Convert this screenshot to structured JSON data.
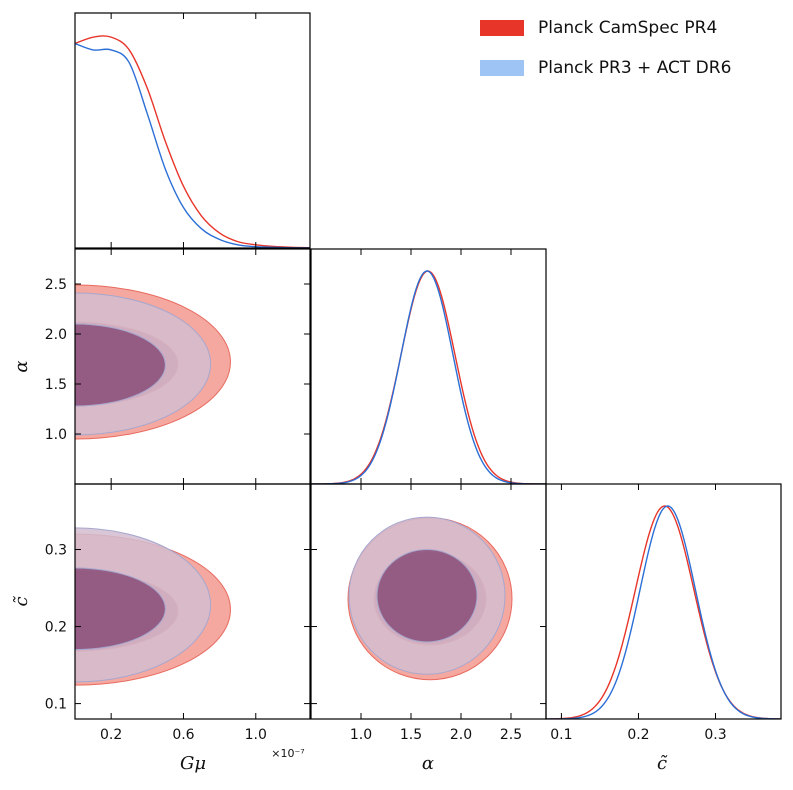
{
  "chart_data": {
    "type": "triangle",
    "parameters": [
      {
        "symbol": "Gμ",
        "range": [
          0.0,
          1.3
        ],
        "ticks": [
          0.2,
          0.6,
          1.0
        ],
        "tick_labels": [
          "0.2",
          "0.6",
          "1.0"
        ],
        "scale_label": "×10⁻⁷"
      },
      {
        "symbol": "α",
        "range": [
          0.5,
          2.85
        ],
        "ticks": [
          1.0,
          1.5,
          2.0,
          2.5
        ],
        "tick_labels": [
          "1.0",
          "1.5",
          "2.0",
          "2.5"
        ]
      },
      {
        "symbol": "c̃",
        "range": [
          0.08,
          0.385
        ],
        "ticks": [
          0.1,
          0.2,
          0.3
        ],
        "tick_labels": [
          "0.1",
          "0.2",
          "0.3"
        ]
      }
    ],
    "series": [
      {
        "name": "Planck CamSpec PR4",
        "line_color": "#e8352a",
        "fill_outer": "#f4a89f",
        "fill_inner": "#c0505e",
        "marginals": [
          {
            "x": [
              0.0,
              0.1,
              0.2,
              0.3,
              0.4,
              0.5,
              0.6,
              0.7,
              0.8,
              0.9,
              1.0,
              1.1,
              1.2,
              1.3
            ],
            "y": [
              0.96,
              0.99,
              0.99,
              0.93,
              0.75,
              0.5,
              0.29,
              0.15,
              0.07,
              0.03,
              0.015,
              0.007,
              0.003,
              0.001
            ]
          },
          {
            "mean": 1.67,
            "sigma": 0.27
          },
          {
            "mean": 0.234,
            "sigma": 0.038
          }
        ],
        "contours": [
          {
            "x_param": 0,
            "y_param": 1,
            "outer": {
              "cx": 0.0,
              "cy": 1.72,
              "rx": 0.86,
              "ry": 0.77
            },
            "inner": {
              "cx": 0.0,
              "cy": 1.7,
              "rx": 0.57,
              "ry": 0.42
            }
          },
          {
            "x_param": 0,
            "y_param": 2,
            "outer": {
              "cx": 0.0,
              "cy": 0.222,
              "rx": 0.86,
              "ry": 0.098
            },
            "inner": {
              "cx": 0.0,
              "cy": 0.22,
              "rx": 0.57,
              "ry": 0.052
            }
          },
          {
            "x_param": 1,
            "y_param": 2,
            "outer": {
              "cx": 1.69,
              "cy": 0.236,
              "rx": 0.82,
              "ry": 0.105
            },
            "inner": {
              "cx": 1.69,
              "cy": 0.236,
              "rx": 0.56,
              "ry": 0.06
            }
          }
        ]
      },
      {
        "name": "Planck PR3 + ACT DR6",
        "line_color": "#2b6fd6",
        "fill_outer": "#d2bdd0",
        "fill_inner": "#8a4d78",
        "marginals": [
          {
            "x": [
              0.0,
              0.1,
              0.2,
              0.3,
              0.4,
              0.5,
              0.6,
              0.7,
              0.8,
              0.9,
              1.0,
              1.1,
              1.2,
              1.3
            ],
            "y": [
              0.96,
              0.93,
              0.93,
              0.87,
              0.63,
              0.37,
              0.19,
              0.09,
              0.04,
              0.015,
              0.006,
              0.003,
              0.001,
              0.0005
            ]
          },
          {
            "mean": 1.66,
            "sigma": 0.26
          },
          {
            "mean": 0.238,
            "sigma": 0.036
          }
        ],
        "contours": [
          {
            "x_param": 0,
            "y_param": 1,
            "outer": {
              "cx": 0.0,
              "cy": 1.7,
              "rx": 0.75,
              "ry": 0.71
            },
            "inner": {
              "cx": 0.0,
              "cy": 1.69,
              "rx": 0.5,
              "ry": 0.41
            }
          },
          {
            "x_param": 0,
            "y_param": 2,
            "outer": {
              "cx": 0.0,
              "cy": 0.228,
              "rx": 0.75,
              "ry": 0.1
            },
            "inner": {
              "cx": 0.0,
              "cy": 0.223,
              "rx": 0.5,
              "ry": 0.053
            }
          },
          {
            "x_param": 1,
            "y_param": 2,
            "outer": {
              "cx": 1.66,
              "cy": 0.24,
              "rx": 0.78,
              "ry": 0.102
            },
            "inner": {
              "cx": 1.66,
              "cy": 0.24,
              "rx": 0.5,
              "ry": 0.06
            }
          }
        ]
      }
    ]
  }
}
